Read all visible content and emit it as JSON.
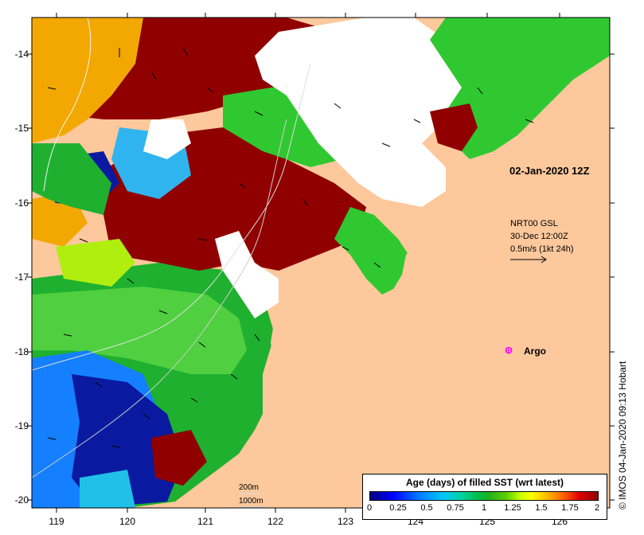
{
  "axes": {
    "lat_labels": [
      "-14",
      "-15",
      "-16",
      "-17",
      "-18",
      "-19",
      "-20"
    ],
    "lon_labels": [
      "119",
      "120",
      "121",
      "122",
      "123",
      "124",
      "125",
      "126"
    ]
  },
  "map_time": "02-Jan-2020 12Z",
  "vector_key": {
    "title": "NRT00 GSL",
    "time": "30-Dec 12:00Z",
    "scale": "0.5m/s (1kt 24h)"
  },
  "argo_label": "Argo",
  "depth_labels": [
    "200m",
    "1000m"
  ],
  "credit": "© IMOS 04-Jan-2020 09:13 Hobart",
  "legend": {
    "title": "Age (days) of filled SST (wrt latest)",
    "ticks": [
      "0",
      "0.25",
      "0.5",
      "0.75",
      "1",
      "1.25",
      "1.5",
      "1.75",
      "2"
    ]
  },
  "colors": {
    "land": "#fcc89c",
    "no_data": "#ffffff",
    "argo_marker": "#ff00ff"
  }
}
